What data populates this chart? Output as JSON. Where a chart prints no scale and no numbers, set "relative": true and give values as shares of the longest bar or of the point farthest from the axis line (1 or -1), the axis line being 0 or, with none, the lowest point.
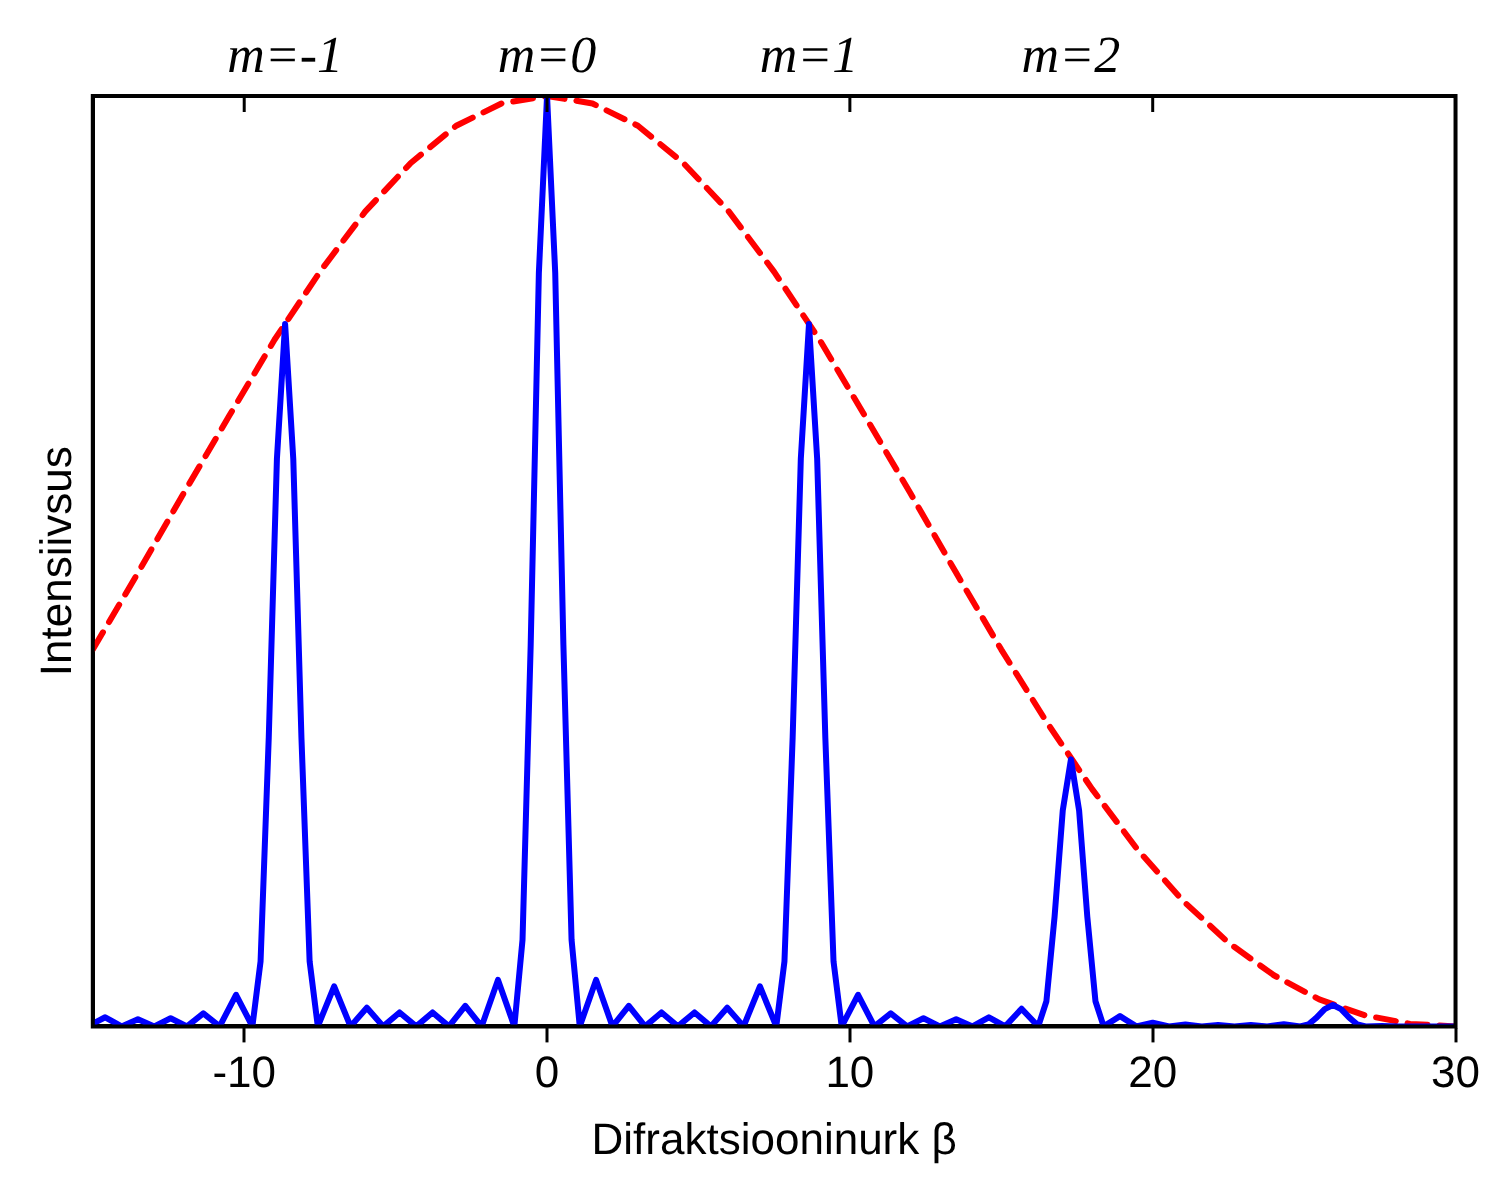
{
  "chart_data": {
    "type": "line",
    "xlabel": "Difraktsiooninurk β",
    "ylabel": "Intensiivsus",
    "relative": true,
    "xlim": [
      -15,
      30
    ],
    "xticks": [
      -10,
      0,
      10,
      20,
      30
    ],
    "legend": false,
    "grid": false,
    "marker": "none",
    "annotations": [
      "m=-1",
      "m=0",
      "m=1",
      "m=2"
    ],
    "series": [
      {
        "color": "#0000ff",
        "line_style": "solid",
        "x": [
          -15,
          -14.59,
          -14.05,
          -13.51,
          -12.97,
          -12.43,
          -11.89,
          -11.35,
          -10.81,
          -10.27,
          -9.73,
          -9.46,
          -9.19,
          -8.92,
          -8.65,
          -8.38,
          -8.11,
          -7.84,
          -7.57,
          -7.03,
          -6.49,
          -5.95,
          -5.41,
          -4.87,
          -4.32,
          -3.78,
          -3.24,
          -2.7,
          -2.16,
          -1.62,
          -1.08,
          -0.81,
          -0.54,
          -0.27,
          0,
          0.27,
          0.54,
          0.81,
          1.08,
          1.62,
          2.16,
          2.7,
          3.24,
          3.78,
          4.32,
          4.87,
          5.41,
          5.95,
          6.49,
          7.03,
          7.57,
          7.84,
          8.11,
          8.38,
          8.65,
          8.92,
          9.19,
          9.46,
          9.73,
          10.27,
          10.81,
          11.35,
          11.89,
          12.43,
          12.97,
          13.51,
          14.05,
          14.59,
          15.13,
          15.67,
          16.22,
          16.49,
          16.76,
          17.03,
          17.3,
          17.57,
          17.84,
          18.11,
          18.38,
          18.92,
          19.46,
          20,
          20.54,
          21.08,
          21.62,
          22.16,
          22.7,
          23.24,
          23.78,
          24.33,
          24.87,
          25.14,
          25.41,
          25.68,
          25.95,
          26.22,
          26.49,
          26.76,
          27.03,
          27.57,
          28.11,
          30
        ],
        "values": [
          0.003,
          0.0098,
          0,
          0.0078,
          0,
          0.0088,
          0,
          0.014,
          0,
          0.034,
          0,
          0.07,
          0.31,
          0.61,
          0.755,
          0.61,
          0.31,
          0.07,
          0,
          0.043,
          0,
          0.02,
          0,
          0.015,
          0,
          0.015,
          0,
          0.022,
          0,
          0.05,
          0,
          0.093,
          0.41,
          0.81,
          1,
          0.81,
          0.41,
          0.093,
          0,
          0.05,
          0,
          0.022,
          0,
          0.015,
          0,
          0.015,
          0,
          0.02,
          0,
          0.043,
          0,
          0.07,
          0.31,
          0.61,
          0.755,
          0.61,
          0.31,
          0.07,
          0,
          0.034,
          0,
          0.014,
          0,
          0.0088,
          0,
          0.0078,
          0,
          0.0098,
          0,
          0.019,
          0,
          0.027,
          0.118,
          0.232,
          0.287,
          0.232,
          0.118,
          0.027,
          0,
          0.011,
          0,
          0.0039,
          0,
          0.002,
          0,
          0.0016,
          0,
          0.0016,
          0,
          0.0024,
          0,
          0.0021,
          0.0094,
          0.0186,
          0.023,
          0.0186,
          0.0094,
          0.0021,
          0,
          0.0004,
          0,
          0
        ]
      },
      {
        "color": "#ff0000",
        "line_style": "dashed",
        "x": [
          -15,
          -13.5,
          -12,
          -10.5,
          -9,
          -7.5,
          -6,
          -4.5,
          -3,
          -1.5,
          0,
          1.5,
          3,
          4.5,
          6,
          7.5,
          9,
          10.5,
          12,
          13.5,
          15,
          16.5,
          18,
          19.5,
          21,
          22.5,
          24,
          25.5,
          27,
          28.5,
          30
        ],
        "values": [
          0.405,
          0.488,
          0.573,
          0.656,
          0.738,
          0.811,
          0.876,
          0.928,
          0.968,
          0.992,
          1,
          0.992,
          0.968,
          0.928,
          0.876,
          0.811,
          0.738,
          0.656,
          0.573,
          0.488,
          0.405,
          0.327,
          0.255,
          0.19,
          0.135,
          0.09,
          0.055,
          0.029,
          0.012,
          0.0027,
          0
        ]
      }
    ]
  }
}
